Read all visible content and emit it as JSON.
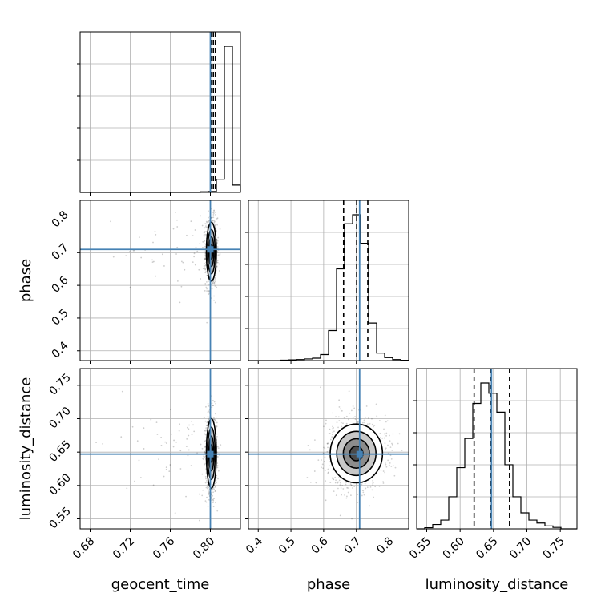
{
  "chart_data": {
    "type": "corner",
    "parameters": [
      "geocent_time",
      "phase",
      "luminosity_distance"
    ],
    "truths": [
      0.8,
      0.71,
      0.647
    ],
    "truth_color": "#4682b4",
    "ranges": [
      [
        0.67,
        0.83
      ],
      [
        0.37,
        0.86
      ],
      [
        0.535,
        0.775
      ]
    ],
    "ticks": [
      [
        0.68,
        0.72,
        0.76,
        0.8
      ],
      [
        0.4,
        0.5,
        0.6,
        0.7,
        0.8
      ],
      [
        0.55,
        0.6,
        0.65,
        0.7,
        0.75
      ]
    ],
    "tick_labels": [
      [
        "0.68",
        "0.72",
        "0.76",
        "0.80"
      ],
      [
        "0.4",
        "0.5",
        "0.6",
        "0.7",
        "0.8"
      ],
      [
        "0.55",
        "0.60",
        "0.65",
        "0.70",
        "0.75"
      ]
    ],
    "histograms": [
      {
        "parameter": "geocent_time",
        "edges": [
          0.67,
          0.678,
          0.686,
          0.694,
          0.702,
          0.71,
          0.718,
          0.726,
          0.734,
          0.742,
          0.75,
          0.758,
          0.766,
          0.774,
          0.782,
          0.79,
          0.798,
          0.806,
          0.814,
          0.822,
          0.83
        ],
        "counts": [
          0,
          0,
          0,
          0,
          0,
          0,
          0,
          0,
          0,
          0,
          0,
          0,
          0,
          0,
          0,
          0.004,
          0.006,
          0.09,
          1.0,
          0.05
        ],
        "quantiles": [
          0.801,
          0.803,
          0.805
        ]
      },
      {
        "parameter": "phase",
        "edges": [
          0.37,
          0.3945,
          0.419,
          0.4435,
          0.468,
          0.4925,
          0.517,
          0.5415,
          0.566,
          0.5905,
          0.615,
          0.6395,
          0.664,
          0.6885,
          0.713,
          0.7375,
          0.762,
          0.7865,
          0.811,
          0.8355,
          0.86
        ],
        "counts": [
          0,
          0,
          0,
          0,
          0.003,
          0.005,
          0.007,
          0.011,
          0.016,
          0.04,
          0.2,
          0.61,
          0.91,
          0.97,
          0.78,
          0.25,
          0.05,
          0.02,
          0.007,
          0.002
        ],
        "quantiles": [
          0.661,
          0.701,
          0.735
        ]
      },
      {
        "parameter": "luminosity_distance",
        "edges": [
          0.535,
          0.547,
          0.559,
          0.571,
          0.583,
          0.595,
          0.607,
          0.619,
          0.631,
          0.643,
          0.655,
          0.667,
          0.679,
          0.691,
          0.703,
          0.715,
          0.727,
          0.739,
          0.751,
          0.763,
          0.775
        ],
        "counts": [
          0,
          0.008,
          0.03,
          0.06,
          0.22,
          0.42,
          0.62,
          0.86,
          1.0,
          0.93,
          0.8,
          0.44,
          0.22,
          0.11,
          0.06,
          0.04,
          0.02,
          0.01,
          0,
          0
        ],
        "quantiles": [
          0.621,
          0.646,
          0.674
        ]
      }
    ],
    "scatter_2d": [
      {
        "x": "geocent_time",
        "y": "phase",
        "center": [
          0.801,
          0.703
        ],
        "spread": [
          0.0025,
          0.045
        ],
        "outlier_spread": [
          0.02,
          0.07
        ]
      },
      {
        "x": "geocent_time",
        "y": "luminosity_distance",
        "center": [
          0.801,
          0.648
        ],
        "spread": [
          0.0025,
          0.026
        ],
        "outlier_spread": [
          0.02,
          0.05
        ]
      },
      {
        "x": "phase",
        "y": "luminosity_distance",
        "center": [
          0.7,
          0.648
        ],
        "spread": [
          0.04,
          0.022
        ],
        "outlier_spread": [
          0.06,
          0.035
        ]
      }
    ],
    "grid": true
  }
}
